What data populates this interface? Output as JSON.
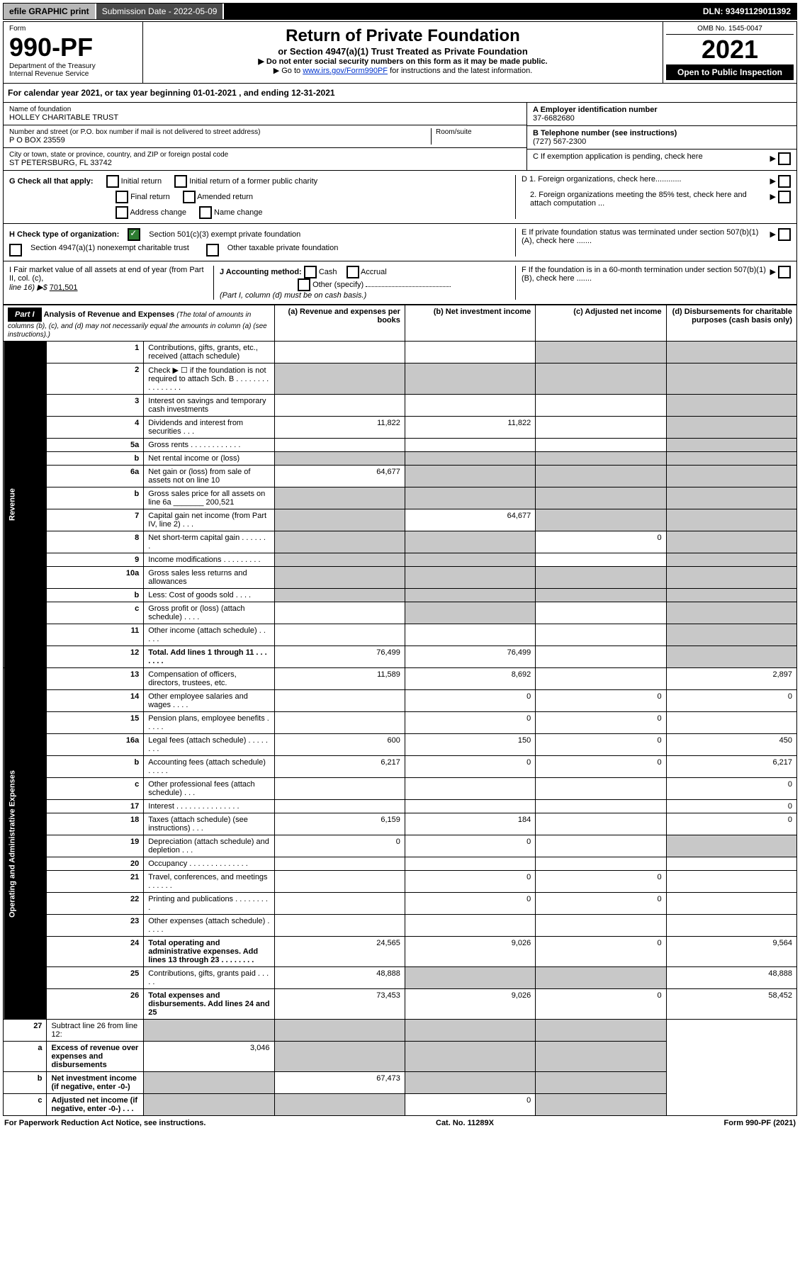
{
  "colors": {
    "header_bg": "#000000",
    "header_fg": "#ffffff",
    "grey_cell": "#c8c8c8",
    "efile_bg": "#b8b8b8",
    "sub_bg": "#4a4a4a",
    "date_bg": "#d8d8d8",
    "link": "#0033cc",
    "check_green": "#2e7d32"
  },
  "topbar": {
    "efile": "efile GRAPHIC print",
    "sub_label": "Submission Date - 2022-05-09",
    "dln": "DLN: 93491129011392"
  },
  "header": {
    "form_word": "Form",
    "form_no": "990-PF",
    "dept": "Department of the Treasury",
    "irs": "Internal Revenue Service",
    "title": "Return of Private Foundation",
    "subtitle": "or Section 4947(a)(1) Trust Treated as Private Foundation",
    "instr1": "▶ Do not enter social security numbers on this form as it may be made public.",
    "instr2_prefix": "▶ Go to ",
    "instr2_link": "www.irs.gov/Form990PF",
    "instr2_suffix": " for instructions and the latest information.",
    "omb": "OMB No. 1545-0047",
    "year": "2021",
    "inspect": "Open to Public Inspection"
  },
  "cal_year_line": "For calendar year 2021, or tax year beginning 01-01-2021           , and ending 12-31-2021",
  "info": {
    "name_label": "Name of foundation",
    "name": "HOLLEY CHARITABLE TRUST",
    "addr_label": "Number and street (or P.O. box number if mail is not delivered to street address)",
    "room_label": "Room/suite",
    "addr": "P O BOX 23559",
    "city_label": "City or town, state or province, country, and ZIP or foreign postal code",
    "city": "ST PETERSBURG, FL  33742",
    "A_label": "A Employer identification number",
    "A_val": "37-6682680",
    "B_label": "B Telephone number (see instructions)",
    "B_val": "(727) 567-2300",
    "C_label": "C If exemption application is pending, check here",
    "D1_label": "D 1. Foreign organizations, check here............",
    "D2_label": "2. Foreign organizations meeting the 85% test, check here and attach computation ...",
    "E_label": "E  If private foundation status was terminated under section 507(b)(1)(A), check here .......",
    "F_label": "F  If the foundation is in a 60-month termination under section 507(b)(1)(B), check here ......."
  },
  "G": {
    "label": "G Check all that apply:",
    "initial": "Initial return",
    "final": "Final return",
    "addr_change": "Address change",
    "init_former": "Initial return of a former public charity",
    "amended": "Amended return",
    "name_change": "Name change"
  },
  "H": {
    "label": "H Check type of organization:",
    "opt1": "Section 501(c)(3) exempt private foundation",
    "opt2": "Section 4947(a)(1) nonexempt charitable trust",
    "opt3": "Other taxable private foundation"
  },
  "I": {
    "label": "I Fair market value of all assets at end of year (from Part II, col. (c),",
    "line16": "line 16) ▶$",
    "val": "701,501"
  },
  "J": {
    "label": "J Accounting method:",
    "cash": "Cash",
    "accrual": "Accrual",
    "other": "Other (specify)",
    "note": "(Part I, column (d) must be on cash basis.)"
  },
  "part1": {
    "label": "Part I",
    "title": "Analysis of Revenue and Expenses",
    "note": "(The total of amounts in columns (b), (c), and (d) may not necessarily equal the amounts in column (a) (see instructions).)",
    "col_a": "(a)  Revenue and expenses per books",
    "col_b": "(b)  Net investment income",
    "col_c": "(c)  Adjusted net income",
    "col_d": "(d)  Disbursements for charitable purposes (cash basis only)"
  },
  "side_labels": {
    "revenue": "Revenue",
    "opex": "Operating and Administrative Expenses"
  },
  "rows": [
    {
      "n": "1",
      "desc": "Contributions, gifts, grants, etc., received (attach schedule)",
      "a": "",
      "b": "",
      "c": "g",
      "d": "g"
    },
    {
      "n": "2",
      "desc": "Check ▶ ☐ if the foundation is not required to attach Sch. B  . . . . . . . . . . . . . . . .",
      "a": "g",
      "b": "g",
      "c": "g",
      "d": "g"
    },
    {
      "n": "3",
      "desc": "Interest on savings and temporary cash investments",
      "a": "",
      "b": "",
      "c": "",
      "d": "g"
    },
    {
      "n": "4",
      "desc": "Dividends and interest from securities  . . .",
      "a": "11,822",
      "b": "11,822",
      "c": "",
      "d": "g"
    },
    {
      "n": "5a",
      "desc": "Gross rents  . . . . . . . . . . . .",
      "a": "",
      "b": "",
      "c": "",
      "d": "g"
    },
    {
      "n": "b",
      "desc": "Net rental income or (loss)  ",
      "a": "g",
      "b": "g",
      "c": "g",
      "d": "g"
    },
    {
      "n": "6a",
      "desc": "Net gain or (loss) from sale of assets not on line 10",
      "a": "64,677",
      "b": "g",
      "c": "g",
      "d": "g"
    },
    {
      "n": "b",
      "desc": "Gross sales price for all assets on line 6a _______ 200,521",
      "a": "g",
      "b": "g",
      "c": "g",
      "d": "g"
    },
    {
      "n": "7",
      "desc": "Capital gain net income (from Part IV, line 2)  . . .",
      "a": "g",
      "b": "64,677",
      "c": "g",
      "d": "g"
    },
    {
      "n": "8",
      "desc": "Net short-term capital gain  . . . . . . .",
      "a": "g",
      "b": "g",
      "c": "0",
      "d": "g"
    },
    {
      "n": "9",
      "desc": "Income modifications . . . . . . . . .",
      "a": "g",
      "b": "g",
      "c": "",
      "d": "g"
    },
    {
      "n": "10a",
      "desc": "Gross sales less returns and allowances",
      "a": "g",
      "b": "g",
      "c": "g",
      "d": "g"
    },
    {
      "n": "b",
      "desc": "Less: Cost of goods sold  . . . .",
      "a": "g",
      "b": "g",
      "c": "g",
      "d": "g"
    },
    {
      "n": "c",
      "desc": "Gross profit or (loss) (attach schedule)  . . . .",
      "a": "",
      "b": "g",
      "c": "",
      "d": "g"
    },
    {
      "n": "11",
      "desc": "Other income (attach schedule)  . . . . .",
      "a": "",
      "b": "",
      "c": "",
      "d": "g"
    },
    {
      "n": "12",
      "desc": "Total. Add lines 1 through 11  . . . . . . .",
      "a": "76,499",
      "b": "76,499",
      "c": "",
      "d": "g",
      "bold": true
    }
  ],
  "exp_rows": [
    {
      "n": "13",
      "desc": "Compensation of officers, directors, trustees, etc.",
      "a": "11,589",
      "b": "8,692",
      "c": "",
      "d": "2,897"
    },
    {
      "n": "14",
      "desc": "Other employee salaries and wages  . . . .",
      "a": "",
      "b": "0",
      "c": "0",
      "d": "0"
    },
    {
      "n": "15",
      "desc": "Pension plans, employee benefits  . . . . .",
      "a": "",
      "b": "0",
      "c": "0",
      "d": ""
    },
    {
      "n": "16a",
      "desc": "Legal fees (attach schedule) . . . . . . . .",
      "a": "600",
      "b": "150",
      "c": "0",
      "d": "450"
    },
    {
      "n": "b",
      "desc": "Accounting fees (attach schedule) . . . . .",
      "a": "6,217",
      "b": "0",
      "c": "0",
      "d": "6,217"
    },
    {
      "n": "c",
      "desc": "Other professional fees (attach schedule)  . . .",
      "a": "",
      "b": "",
      "c": "",
      "d": "0"
    },
    {
      "n": "17",
      "desc": "Interest  . . . . . . . . . . . . . . .",
      "a": "",
      "b": "",
      "c": "",
      "d": "0"
    },
    {
      "n": "18",
      "desc": "Taxes (attach schedule) (see instructions)  . . .",
      "a": "6,159",
      "b": "184",
      "c": "",
      "d": "0"
    },
    {
      "n": "19",
      "desc": "Depreciation (attach schedule) and depletion  . . .",
      "a": "0",
      "b": "0",
      "c": "",
      "d": "g"
    },
    {
      "n": "20",
      "desc": "Occupancy . . . . . . . . . . . . . .",
      "a": "",
      "b": "",
      "c": "",
      "d": ""
    },
    {
      "n": "21",
      "desc": "Travel, conferences, and meetings . . . . . .",
      "a": "",
      "b": "0",
      "c": "0",
      "d": ""
    },
    {
      "n": "22",
      "desc": "Printing and publications . . . . . . . . .",
      "a": "",
      "b": "0",
      "c": "0",
      "d": ""
    },
    {
      "n": "23",
      "desc": "Other expenses (attach schedule)  . . . . .",
      "a": "",
      "b": "",
      "c": "",
      "d": ""
    },
    {
      "n": "24",
      "desc": "Total operating and administrative expenses. Add lines 13 through 23  . . . . . . . .",
      "a": "24,565",
      "b": "9,026",
      "c": "0",
      "d": "9,564",
      "bold": true
    },
    {
      "n": "25",
      "desc": "Contributions, gifts, grants paid  . . . . .",
      "a": "48,888",
      "b": "g",
      "c": "g",
      "d": "48,888"
    },
    {
      "n": "26",
      "desc": "Total expenses and disbursements. Add lines 24 and 25",
      "a": "73,453",
      "b": "9,026",
      "c": "0",
      "d": "58,452",
      "bold": true
    }
  ],
  "net_rows": [
    {
      "n": "27",
      "desc": "Subtract line 26 from line 12:",
      "a": "g",
      "b": "g",
      "c": "g",
      "d": "g"
    },
    {
      "n": "a",
      "desc": "Excess of revenue over expenses and disbursements",
      "a": "3,046",
      "b": "g",
      "c": "g",
      "d": "g",
      "bold": true
    },
    {
      "n": "b",
      "desc": "Net investment income (if negative, enter -0-)",
      "a": "g",
      "b": "67,473",
      "c": "g",
      "d": "g",
      "bold": true
    },
    {
      "n": "c",
      "desc": "Adjusted net income (if negative, enter -0-)  . . .",
      "a": "g",
      "b": "g",
      "c": "0",
      "d": "g",
      "bold": true
    }
  ],
  "footer": {
    "left": "For Paperwork Reduction Act Notice, see instructions.",
    "mid": "Cat. No. 11289X",
    "right": "Form 990-PF (2021)"
  }
}
